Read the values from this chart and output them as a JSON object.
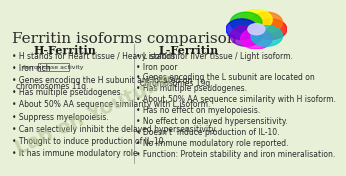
{
  "title": "Ferritin isoforms comparison",
  "background_color": "#e8f0d8",
  "h_ferritin_title": "H-Ferritin",
  "l_ferritin_title": "L-Ferritin",
  "h_ferritin_items": [
    "H stands for Heart tissue / Heavy isoform.",
    "Iron rich",
    "Genes encoding the H subunit are located on\nchromosomes 11q.",
    "Has multiple pseudogenes.",
    "About 50% AA sequence similarity with L isoform.",
    "Suppress myelopoiesis.",
    "Can selectively inhibit the delayed hypersensitivity.",
    "Thought to induce production of IL-10.",
    "It has immune modulatory role."
  ],
  "l_ferritin_items": [
    "L stands for liver tissue / Light isoform.",
    "Iron poor",
    "Genes encoding the L subunit are located on\nchromosomes 19q.",
    "Has multiple pseudogenes.",
    "About 50% AA sequence similarity with H isoform.",
    "Has no effect on myelopoiesis.",
    "No effect on delayed hypersensitivity.",
    "Doesn't  induce production of IL-10.",
    "No immune modulatory role reported.",
    "Function: Protein stability and iron mineralisation."
  ],
  "ferroxidase_label": "ferroxidase activity",
  "title_fontsize": 11,
  "header_fontsize": 8,
  "bullet_fontsize": 5.5,
  "text_color": "#2a2a2a",
  "header_color": "#1a1a1a",
  "watermark": "Lab on Youtube",
  "watermark_color": "#b0c090"
}
